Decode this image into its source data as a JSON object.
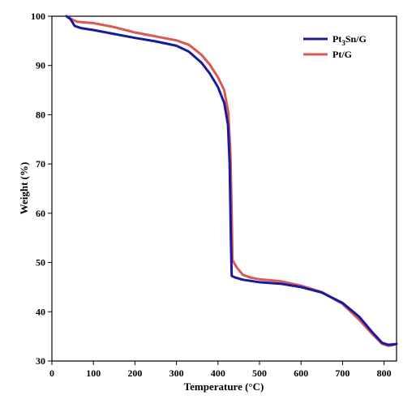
{
  "chart_data": {
    "type": "line",
    "title": "",
    "xlabel": "Temperature (°C)",
    "ylabel": "Weight  (%)",
    "xlim": [
      0,
      830
    ],
    "ylim": [
      30,
      100
    ],
    "xticks": [
      0,
      100,
      200,
      300,
      400,
      500,
      600,
      700,
      800
    ],
    "yticks": [
      30,
      40,
      50,
      60,
      70,
      80,
      90,
      100
    ],
    "grid": false,
    "legend_position": "top-right",
    "series": [
      {
        "name": "Pt3Sn/G",
        "legend_main": "Pt",
        "legend_sub": "3",
        "legend_rest": "Sn/G",
        "color": "#1a1a9e",
        "points": [
          [
            35,
            100
          ],
          [
            45,
            99.4
          ],
          [
            55,
            98
          ],
          [
            70,
            97.6
          ],
          [
            100,
            97.2
          ],
          [
            150,
            96.4
          ],
          [
            200,
            95.6
          ],
          [
            250,
            94.9
          ],
          [
            300,
            94
          ],
          [
            330,
            92.8
          ],
          [
            360,
            90.6
          ],
          [
            380,
            88.4
          ],
          [
            400,
            85.6
          ],
          [
            415,
            82.4
          ],
          [
            424,
            78
          ],
          [
            428,
            70
          ],
          [
            431,
            55
          ],
          [
            433,
            47.3
          ],
          [
            440,
            47
          ],
          [
            460,
            46.5
          ],
          [
            500,
            46
          ],
          [
            550,
            45.7
          ],
          [
            600,
            45
          ],
          [
            650,
            43.9
          ],
          [
            700,
            41.8
          ],
          [
            740,
            39
          ],
          [
            770,
            36
          ],
          [
            795,
            33.7
          ],
          [
            810,
            33.3
          ],
          [
            825,
            33.4
          ],
          [
            830,
            33.5
          ]
        ]
      },
      {
        "name": "Pt/G",
        "legend_main": "Pt/G",
        "legend_sub": "",
        "legend_rest": "",
        "color": "#d95858",
        "points": [
          [
            35,
            100
          ],
          [
            45,
            99.5
          ],
          [
            60,
            98.9
          ],
          [
            100,
            98.6
          ],
          [
            150,
            97.8
          ],
          [
            200,
            96.7
          ],
          [
            250,
            95.9
          ],
          [
            300,
            95.1
          ],
          [
            330,
            94.2
          ],
          [
            360,
            92.2
          ],
          [
            380,
            90.2
          ],
          [
            400,
            87.6
          ],
          [
            415,
            85
          ],
          [
            425,
            80.4
          ],
          [
            430,
            72
          ],
          [
            433,
            60
          ],
          [
            435,
            50.5
          ],
          [
            445,
            49
          ],
          [
            460,
            47.5
          ],
          [
            480,
            46.9
          ],
          [
            500,
            46.6
          ],
          [
            550,
            46.2
          ],
          [
            600,
            45.3
          ],
          [
            650,
            44
          ],
          [
            700,
            41.6
          ],
          [
            740,
            38.4
          ],
          [
            770,
            35.6
          ],
          [
            795,
            33.5
          ],
          [
            810,
            33.1
          ],
          [
            820,
            33.2
          ],
          [
            830,
            33.5
          ]
        ]
      }
    ]
  }
}
